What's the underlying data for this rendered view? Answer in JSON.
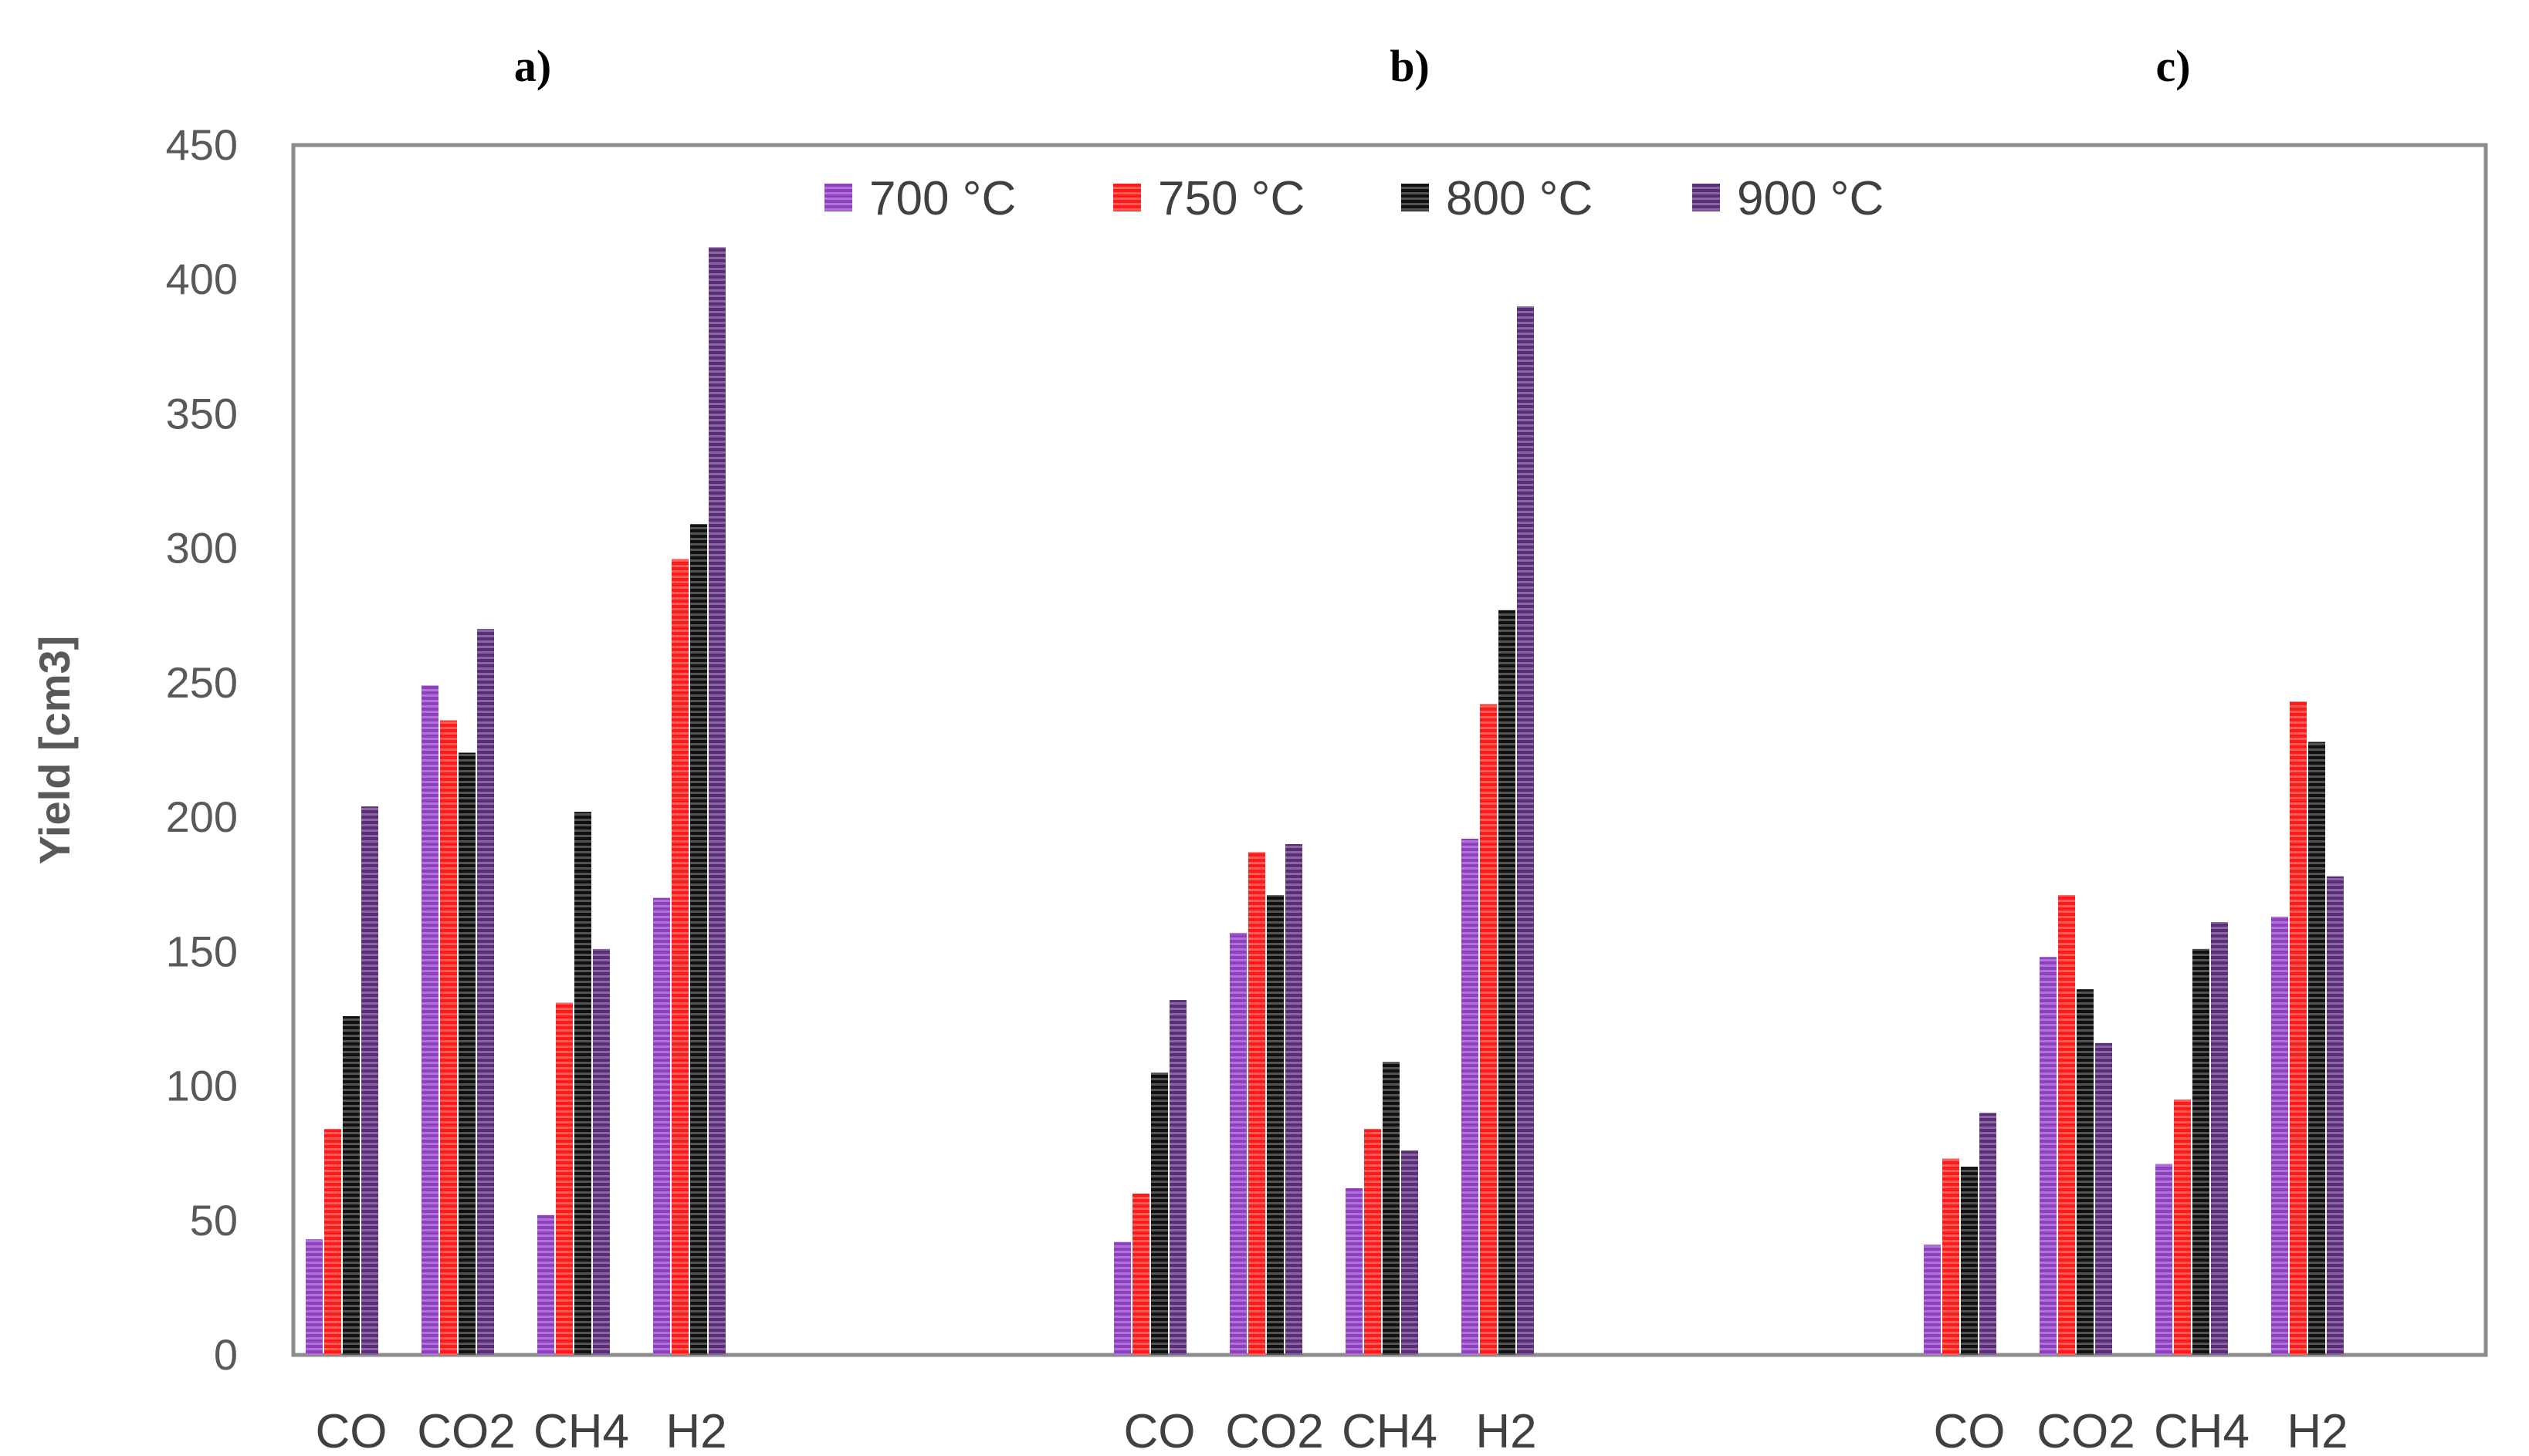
{
  "chart_data": {
    "type": "bar",
    "ylabel": "Yield [cm3]",
    "ylim": [
      0,
      450
    ],
    "yticks": [
      0,
      50,
      100,
      150,
      200,
      250,
      300,
      350,
      400,
      450
    ],
    "ytick_labels": [
      "0",
      "50",
      "100",
      "150",
      "200",
      "250",
      "300",
      "350",
      "400",
      "450"
    ],
    "grid": false,
    "legend_position": "top-center",
    "series": [
      {
        "name": "700 °C",
        "color": "#8e3fc2"
      },
      {
        "name": "750 °C",
        "color": "#ff1a1a"
      },
      {
        "name": "800 °C",
        "color": "#111111"
      },
      {
        "name": "900 °C",
        "color": "#5a2d78"
      }
    ],
    "panels": [
      {
        "label": "a)",
        "categories": [
          "CO",
          "CO2",
          "CH4",
          "H2"
        ],
        "values": [
          [
            43,
            84,
            126,
            204
          ],
          [
            249,
            236,
            224,
            270
          ],
          [
            52,
            131,
            202,
            151
          ],
          [
            170,
            296,
            309,
            412
          ]
        ]
      },
      {
        "label": "b)",
        "categories": [
          "CO",
          "CO2",
          "CH4",
          "H2"
        ],
        "values": [
          [
            42,
            60,
            105,
            132
          ],
          [
            157,
            187,
            171,
            190
          ],
          [
            62,
            84,
            109,
            76
          ],
          [
            192,
            242,
            277,
            390
          ]
        ]
      },
      {
        "label": "c)",
        "categories": [
          "CO",
          "CO2",
          "CH4",
          "H2"
        ],
        "values": [
          [
            41,
            73,
            70,
            90
          ],
          [
            148,
            171,
            136,
            116
          ],
          [
            71,
            95,
            151,
            161
          ],
          [
            163,
            243,
            228,
            178
          ]
        ]
      }
    ]
  }
}
